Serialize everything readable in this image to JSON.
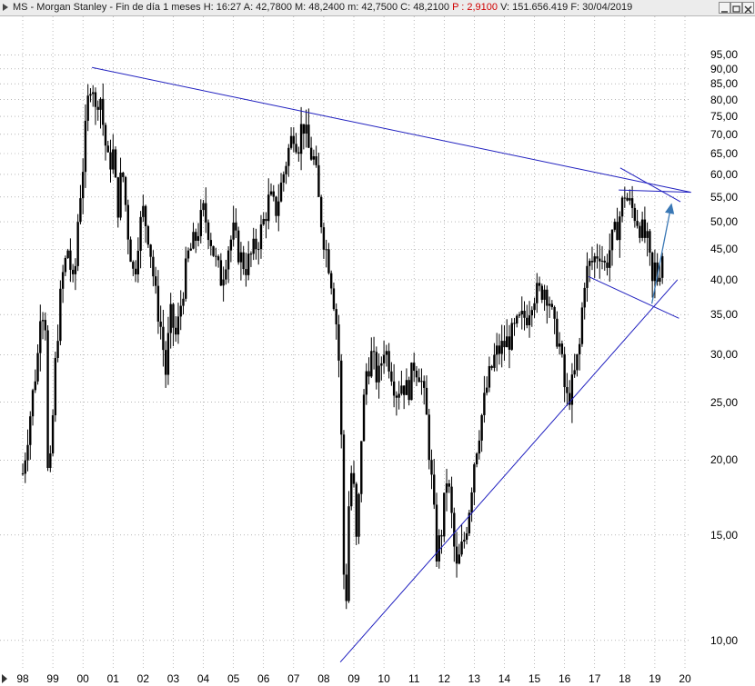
{
  "window": {
    "title_prefix": "MS - Morgan Stanley - Fin de día 1 meses  H: 16:27  A: 42,7800  M: 48,2400  m: 42,7500  C: 48,2100 ",
    "title_change": "P : 2,9100",
    "title_suffix": " V: 151.656.419  F: 30/04/2019"
  },
  "colors": {
    "candle": "#000000",
    "trendline": "#1f1fbf",
    "arrow": "#3a78b5",
    "grid": "#8c8c8c",
    "change_text": "#d00000"
  },
  "chart_data": {
    "type": "candlestick",
    "scale": "log",
    "title": "",
    "xlabel": "",
    "ylabel": "",
    "x_ticks": [
      "98",
      "99",
      "00",
      "01",
      "02",
      "03",
      "04",
      "05",
      "06",
      "07",
      "08",
      "09",
      "10",
      "11",
      "12",
      "13",
      "14",
      "15",
      "16",
      "17",
      "18",
      "19",
      "20"
    ],
    "y_ticks": [
      10,
      15,
      20,
      25,
      30,
      35,
      40,
      45,
      50,
      55,
      60,
      65,
      70,
      75,
      80,
      85,
      90,
      95
    ],
    "y_tick_labels": [
      "10,00",
      "15,00",
      "20,00",
      "25,00",
      "30,00",
      "35,00",
      "40,00",
      "45,00",
      "50,00",
      "55,00",
      "60,00",
      "65,00",
      "70,00",
      "75,00",
      "80,00",
      "85,00",
      "90,00",
      "95,00"
    ],
    "ylim": [
      9.0,
      102
    ],
    "xlim": [
      1997.85,
      2020.3
    ],
    "grid": true,
    "price_path": [
      [
        1998.0,
        19
      ],
      [
        1998.3,
        25
      ],
      [
        1998.5,
        30
      ],
      [
        1998.6,
        37
      ],
      [
        1998.75,
        34
      ],
      [
        1998.85,
        17
      ],
      [
        1998.95,
        21
      ],
      [
        1999.1,
        30
      ],
      [
        1999.3,
        40
      ],
      [
        1999.5,
        45
      ],
      [
        1999.7,
        38
      ],
      [
        1999.85,
        52
      ],
      [
        2000.0,
        62
      ],
      [
        2000.15,
        78
      ],
      [
        2000.3,
        90
      ],
      [
        2000.4,
        75
      ],
      [
        2000.55,
        84
      ],
      [
        2000.7,
        70
      ],
      [
        2000.85,
        62
      ],
      [
        2001.0,
        65
      ],
      [
        2001.15,
        52
      ],
      [
        2001.3,
        62
      ],
      [
        2001.5,
        48
      ],
      [
        2001.7,
        40
      ],
      [
        2001.85,
        48
      ],
      [
        2002.0,
        52
      ],
      [
        2002.2,
        47
      ],
      [
        2002.4,
        38
      ],
      [
        2002.6,
        33
      ],
      [
        2002.75,
        28
      ],
      [
        2002.9,
        35
      ],
      [
        2003.1,
        32
      ],
      [
        2003.3,
        38
      ],
      [
        2003.5,
        44
      ],
      [
        2003.75,
        47
      ],
      [
        2004.0,
        52
      ],
      [
        2004.2,
        48
      ],
      [
        2004.4,
        43
      ],
      [
        2004.6,
        40
      ],
      [
        2004.8,
        45
      ],
      [
        2005.0,
        48
      ],
      [
        2005.2,
        44
      ],
      [
        2005.4,
        42
      ],
      [
        2005.6,
        44
      ],
      [
        2005.85,
        47
      ],
      [
        2006.0,
        50
      ],
      [
        2006.2,
        55
      ],
      [
        2006.4,
        52
      ],
      [
        2006.6,
        58
      ],
      [
        2006.8,
        65
      ],
      [
        2007.0,
        71
      ],
      [
        2007.15,
        67
      ],
      [
        2007.3,
        74
      ],
      [
        2007.5,
        66
      ],
      [
        2007.7,
        63
      ],
      [
        2007.85,
        53
      ],
      [
        2008.0,
        47
      ],
      [
        2008.2,
        42
      ],
      [
        2008.4,
        35
      ],
      [
        2008.55,
        27
      ],
      [
        2008.65,
        14
      ],
      [
        2008.72,
        10
      ],
      [
        2008.8,
        16
      ],
      [
        2008.95,
        20
      ],
      [
        2009.1,
        14
      ],
      [
        2009.25,
        22
      ],
      [
        2009.4,
        28
      ],
      [
        2009.6,
        30
      ],
      [
        2009.8,
        27
      ],
      [
        2010.0,
        31
      ],
      [
        2010.2,
        29
      ],
      [
        2010.4,
        26
      ],
      [
        2010.6,
        27
      ],
      [
        2010.8,
        26
      ],
      [
        2011.0,
        29
      ],
      [
        2011.2,
        28
      ],
      [
        2011.4,
        24
      ],
      [
        2011.6,
        18
      ],
      [
        2011.75,
        14
      ],
      [
        2011.9,
        15
      ],
      [
        2012.1,
        19
      ],
      [
        2012.25,
        16
      ],
      [
        2012.4,
        13
      ],
      [
        2012.55,
        14
      ],
      [
        2012.7,
        15
      ],
      [
        2012.85,
        17
      ],
      [
        2013.0,
        20
      ],
      [
        2013.2,
        23
      ],
      [
        2013.45,
        27
      ],
      [
        2013.7,
        30
      ],
      [
        2013.95,
        31
      ],
      [
        2014.2,
        32
      ],
      [
        2014.5,
        34
      ],
      [
        2014.75,
        35
      ],
      [
        2014.95,
        38
      ],
      [
        2015.15,
        38
      ],
      [
        2015.35,
        39
      ],
      [
        2015.5,
        37
      ],
      [
        2015.65,
        33
      ],
      [
        2015.8,
        32
      ],
      [
        2015.95,
        28
      ],
      [
        2016.05,
        25
      ],
      [
        2016.2,
        26
      ],
      [
        2016.35,
        28
      ],
      [
        2016.5,
        31
      ],
      [
        2016.65,
        40
      ],
      [
        2016.8,
        42
      ],
      [
        2016.95,
        43
      ],
      [
        2017.15,
        45
      ],
      [
        2017.35,
        42
      ],
      [
        2017.55,
        46
      ],
      [
        2017.75,
        49
      ],
      [
        2017.9,
        53
      ],
      [
        2018.0,
        56
      ],
      [
        2018.1,
        54
      ],
      [
        2018.3,
        52
      ],
      [
        2018.45,
        50
      ],
      [
        2018.6,
        48
      ],
      [
        2018.75,
        46
      ],
      [
        2018.85,
        42
      ],
      [
        2018.92,
        39
      ],
      [
        2019.0,
        42
      ],
      [
        2019.1,
        40
      ],
      [
        2019.2,
        43
      ],
      [
        2019.3,
        46
      ],
      [
        2019.33,
        48.21
      ]
    ],
    "trendlines": [
      {
        "from": [
          2000.3,
          90.5
        ],
        "to": [
          2020.2,
          56
        ]
      },
      {
        "from": [
          2008.55,
          9.2
        ],
        "to": [
          2019.75,
          40
        ]
      },
      {
        "from": [
          2017.8,
          56.5
        ],
        "to": [
          2020.2,
          56
        ]
      },
      {
        "from": [
          2017.85,
          61.5
        ],
        "to": [
          2019.85,
          54
        ]
      },
      {
        "from": [
          2016.8,
          40.5
        ],
        "to": [
          2019.8,
          34.5
        ]
      },
      {
        "from": [
          2018.9,
          36.5
        ],
        "to": [
          2019.55,
          53.5
        ],
        "arrow": true
      }
    ]
  }
}
